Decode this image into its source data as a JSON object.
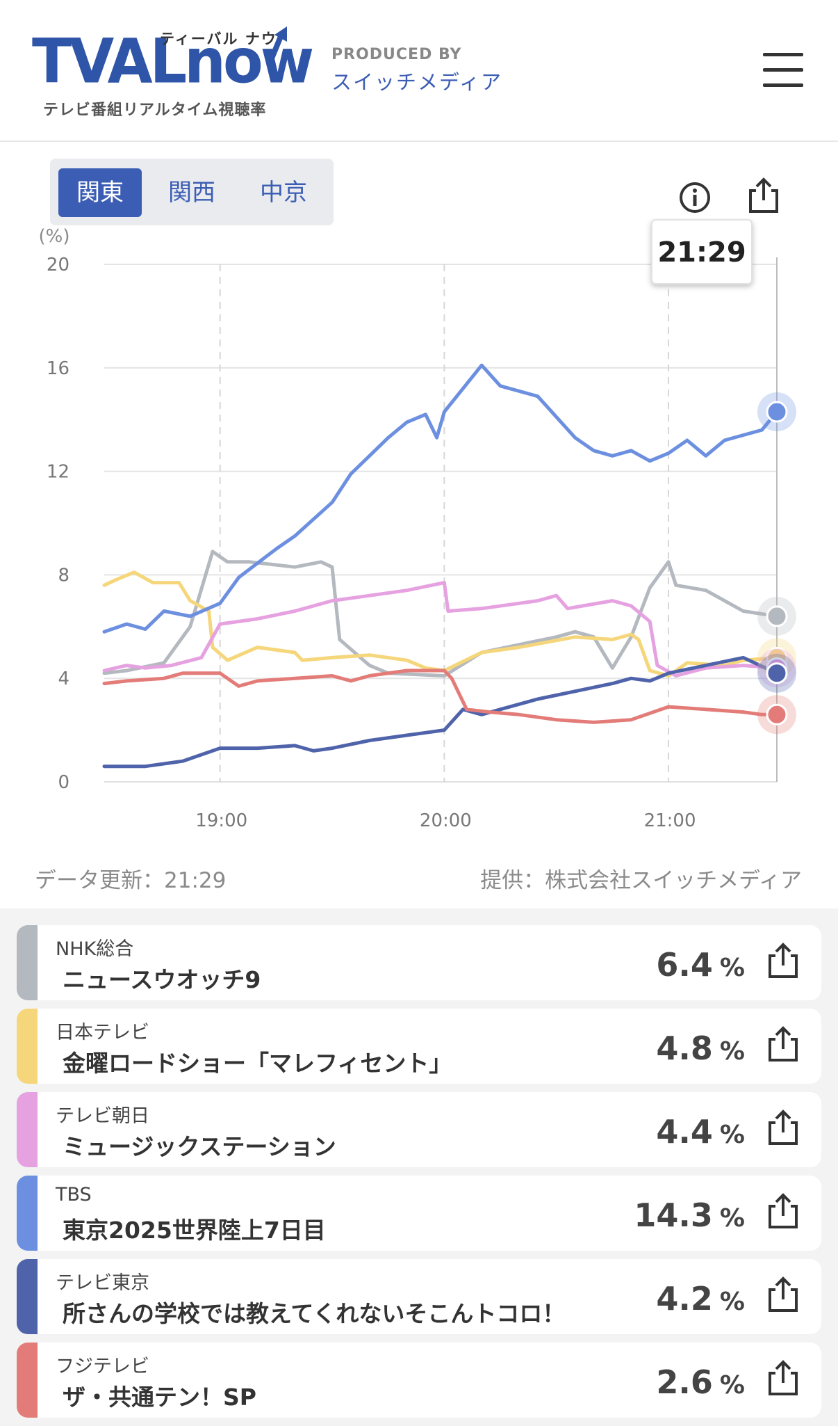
{
  "header": {
    "logo_text": "TVALnow",
    "logo_kana": "ティーバル ナウ",
    "logo_tagline": "テレビ番組リアルタイム視聴率",
    "produced_by_label": "PRODUCED BY",
    "produced_by_name": "スイッチメディア"
  },
  "regions": {
    "tabs": [
      {
        "label": "関東",
        "active": true
      },
      {
        "label": "関西",
        "active": false
      },
      {
        "label": "中京",
        "active": false
      }
    ]
  },
  "chart": {
    "tooltip_time": "21:29",
    "updated": "データ更新：21:29",
    "provider": "提供：株式会社スイッチメディア"
  },
  "chart_data": {
    "type": "line",
    "ylabel": "(%)",
    "ylim": [
      0,
      20
    ],
    "yticks": [
      "0",
      "4",
      "8",
      "12",
      "16",
      "20"
    ],
    "xticks": [
      "19:00",
      "20:00",
      "21:00"
    ],
    "xlim": [
      "18:29",
      "21:29"
    ],
    "grid": true,
    "series": [
      {
        "name": "NHK総合",
        "color": "#b4b8bf",
        "points": [
          [
            "18:29",
            4.2
          ],
          [
            "18:35",
            4.3
          ],
          [
            "18:45",
            4.6
          ],
          [
            "18:52",
            6.0
          ],
          [
            "18:58",
            8.9
          ],
          [
            "19:02",
            8.5
          ],
          [
            "19:08",
            8.5
          ],
          [
            "19:20",
            8.3
          ],
          [
            "19:27",
            8.5
          ],
          [
            "19:30",
            8.3
          ],
          [
            "19:32",
            5.5
          ],
          [
            "19:40",
            4.5
          ],
          [
            "19:45",
            4.2
          ],
          [
            "20:00",
            4.1
          ],
          [
            "20:10",
            5.0
          ],
          [
            "20:20",
            5.3
          ],
          [
            "20:30",
            5.6
          ],
          [
            "20:35",
            5.8
          ],
          [
            "20:40",
            5.6
          ],
          [
            "20:45",
            4.4
          ],
          [
            "20:50",
            5.6
          ],
          [
            "20:55",
            7.5
          ],
          [
            "21:00",
            8.5
          ],
          [
            "21:02",
            7.6
          ],
          [
            "21:10",
            7.4
          ],
          [
            "21:15",
            7.0
          ],
          [
            "21:20",
            6.6
          ],
          [
            "21:29",
            6.4
          ]
        ]
      },
      {
        "name": "日本テレビ",
        "color": "#f5d67a",
        "points": [
          [
            "18:29",
            7.6
          ],
          [
            "18:32",
            7.8
          ],
          [
            "18:37",
            8.1
          ],
          [
            "18:42",
            7.7
          ],
          [
            "18:49",
            7.7
          ],
          [
            "18:52",
            7.0
          ],
          [
            "18:57",
            6.6
          ],
          [
            "18:58",
            5.2
          ],
          [
            "19:02",
            4.7
          ],
          [
            "19:10",
            5.2
          ],
          [
            "19:20",
            5.0
          ],
          [
            "19:22",
            4.7
          ],
          [
            "19:30",
            4.8
          ],
          [
            "19:40",
            4.9
          ],
          [
            "19:50",
            4.7
          ],
          [
            "19:55",
            4.4
          ],
          [
            "20:00",
            4.3
          ],
          [
            "20:10",
            5.0
          ],
          [
            "20:20",
            5.2
          ],
          [
            "20:35",
            5.6
          ],
          [
            "20:45",
            5.5
          ],
          [
            "20:50",
            5.7
          ],
          [
            "20:52",
            5.5
          ],
          [
            "20:55",
            4.3
          ],
          [
            "21:00",
            4.1
          ],
          [
            "21:05",
            4.6
          ],
          [
            "21:15",
            4.5
          ],
          [
            "21:20",
            4.7
          ],
          [
            "21:29",
            4.8
          ]
        ]
      },
      {
        "name": "テレビ朝日",
        "color": "#e6a1e0",
        "points": [
          [
            "18:29",
            4.3
          ],
          [
            "18:35",
            4.5
          ],
          [
            "18:40",
            4.4
          ],
          [
            "18:47",
            4.5
          ],
          [
            "18:55",
            4.8
          ],
          [
            "19:00",
            6.1
          ],
          [
            "19:10",
            6.3
          ],
          [
            "19:20",
            6.6
          ],
          [
            "19:30",
            7.0
          ],
          [
            "19:40",
            7.2
          ],
          [
            "19:50",
            7.4
          ],
          [
            "20:00",
            7.7
          ],
          [
            "20:01",
            6.6
          ],
          [
            "20:10",
            6.7
          ],
          [
            "20:25",
            7.0
          ],
          [
            "20:30",
            7.2
          ],
          [
            "20:33",
            6.7
          ],
          [
            "20:45",
            7.0
          ],
          [
            "20:50",
            6.8
          ],
          [
            "20:55",
            6.2
          ],
          [
            "20:57",
            4.5
          ],
          [
            "21:02",
            4.1
          ],
          [
            "21:10",
            4.4
          ],
          [
            "21:20",
            4.5
          ],
          [
            "21:29",
            4.4
          ]
        ]
      },
      {
        "name": "TBS",
        "color": "#6c8fe0",
        "points": [
          [
            "18:29",
            5.8
          ],
          [
            "18:35",
            6.1
          ],
          [
            "18:40",
            5.9
          ],
          [
            "18:45",
            6.6
          ],
          [
            "18:52",
            6.4
          ],
          [
            "19:00",
            6.9
          ],
          [
            "19:05",
            7.9
          ],
          [
            "19:15",
            9.0
          ],
          [
            "19:20",
            9.5
          ],
          [
            "19:30",
            10.8
          ],
          [
            "19:35",
            11.9
          ],
          [
            "19:40",
            12.6
          ],
          [
            "19:45",
            13.3
          ],
          [
            "19:50",
            13.9
          ],
          [
            "19:55",
            14.2
          ],
          [
            "19:58",
            13.3
          ],
          [
            "20:00",
            14.3
          ],
          [
            "20:05",
            15.2
          ],
          [
            "20:10",
            16.1
          ],
          [
            "20:15",
            15.3
          ],
          [
            "20:25",
            14.9
          ],
          [
            "20:35",
            13.3
          ],
          [
            "20:40",
            12.8
          ],
          [
            "20:45",
            12.6
          ],
          [
            "20:50",
            12.8
          ],
          [
            "20:55",
            12.4
          ],
          [
            "21:00",
            12.7
          ],
          [
            "21:05",
            13.2
          ],
          [
            "21:10",
            12.6
          ],
          [
            "21:15",
            13.2
          ],
          [
            "21:25",
            13.6
          ],
          [
            "21:29",
            14.3
          ]
        ]
      },
      {
        "name": "テレビ東京",
        "color": "#4f63ab",
        "points": [
          [
            "18:29",
            0.6
          ],
          [
            "18:40",
            0.6
          ],
          [
            "18:50",
            0.8
          ],
          [
            "19:00",
            1.3
          ],
          [
            "19:10",
            1.3
          ],
          [
            "19:20",
            1.4
          ],
          [
            "19:25",
            1.2
          ],
          [
            "19:30",
            1.3
          ],
          [
            "19:40",
            1.6
          ],
          [
            "19:50",
            1.8
          ],
          [
            "19:55",
            1.9
          ],
          [
            "20:00",
            2.0
          ],
          [
            "20:05",
            2.8
          ],
          [
            "20:10",
            2.6
          ],
          [
            "20:15",
            2.8
          ],
          [
            "20:25",
            3.2
          ],
          [
            "20:35",
            3.5
          ],
          [
            "20:45",
            3.8
          ],
          [
            "20:50",
            4.0
          ],
          [
            "20:55",
            3.9
          ],
          [
            "21:00",
            4.2
          ],
          [
            "21:10",
            4.5
          ],
          [
            "21:20",
            4.8
          ],
          [
            "21:29",
            4.2
          ]
        ]
      },
      {
        "name": "フジテレビ",
        "color": "#e37c78",
        "points": [
          [
            "18:29",
            3.8
          ],
          [
            "18:35",
            3.9
          ],
          [
            "18:45",
            4.0
          ],
          [
            "18:50",
            4.2
          ],
          [
            "19:00",
            4.2
          ],
          [
            "19:05",
            3.7
          ],
          [
            "19:10",
            3.9
          ],
          [
            "19:20",
            4.0
          ],
          [
            "19:30",
            4.1
          ],
          [
            "19:35",
            3.9
          ],
          [
            "19:40",
            4.1
          ],
          [
            "19:50",
            4.3
          ],
          [
            "20:00",
            4.3
          ],
          [
            "20:02",
            4.0
          ],
          [
            "20:06",
            2.8
          ],
          [
            "20:12",
            2.7
          ],
          [
            "20:20",
            2.6
          ],
          [
            "20:30",
            2.4
          ],
          [
            "20:40",
            2.3
          ],
          [
            "20:50",
            2.4
          ],
          [
            "21:00",
            2.9
          ],
          [
            "21:10",
            2.8
          ],
          [
            "21:20",
            2.7
          ],
          [
            "21:25",
            2.6
          ],
          [
            "21:29",
            2.6
          ]
        ]
      }
    ]
  },
  "channels": [
    {
      "name": "NHK総合",
      "program": "ニュースウオッチ9",
      "value": "6.4",
      "unit": "%",
      "color": "#b4b8bf"
    },
    {
      "name": "日本テレビ",
      "program": "金曜ロードショー「マレフィセント」",
      "value": "4.8",
      "unit": "%",
      "color": "#f5d67a"
    },
    {
      "name": "テレビ朝日",
      "program": "ミュージックステーション",
      "value": "4.4",
      "unit": "%",
      "color": "#e6a1e0"
    },
    {
      "name": "TBS",
      "program": "東京2025世界陸上7日目",
      "value": "14.3",
      "unit": "%",
      "color": "#6c8fe0"
    },
    {
      "name": "テレビ東京",
      "program": "所さんの学校では教えてくれないそこんトコロ！",
      "value": "4.2",
      "unit": "%",
      "color": "#4f63ab"
    },
    {
      "name": "フジテレビ",
      "program": "ザ・共通テン！SP",
      "value": "2.6",
      "unit": "%",
      "color": "#e37c78"
    }
  ]
}
